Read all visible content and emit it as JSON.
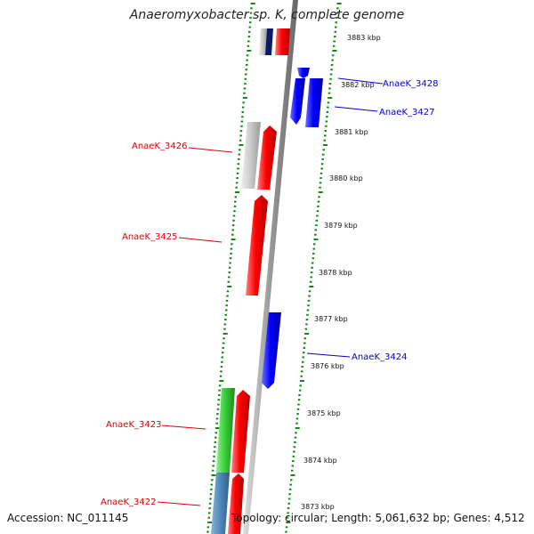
{
  "title": "Anaeromyxobacter sp. K, complete genome",
  "footer": {
    "accession": "Accession: NC_011145",
    "topology": "Topology: circular; Length: 5,061,632 bp; Genes: 4,512"
  },
  "colors": {
    "forward_gene": "#ff0000",
    "reverse_gene": "#0000ff",
    "gray_feature": "#c8c8c8",
    "green_feature": "#33cc33",
    "steel_feature": "#4f88bb",
    "tick": "#118811",
    "backbone": "#999999"
  },
  "kbp_ticks": [
    "3883 kbp",
    "3882 kbp",
    "3881 kbp",
    "3880 kbp",
    "3879 kbp",
    "3878 kbp",
    "3877 kbp",
    "3876 kbp",
    "3875 kbp",
    "3874 kbp",
    "3873 kbp"
  ],
  "gene_labels": [
    {
      "text": "AnaeK_3428",
      "strand": "reverse"
    },
    {
      "text": "AnaeK_3427",
      "strand": "reverse"
    },
    {
      "text": "AnaeK_3426",
      "strand": "forward"
    },
    {
      "text": "AnaeK_3425",
      "strand": "forward"
    },
    {
      "text": "AnaeK_3424",
      "strand": "reverse"
    },
    {
      "text": "AnaeK_3423",
      "strand": "forward"
    },
    {
      "text": "AnaeK_3422",
      "strand": "forward"
    }
  ]
}
